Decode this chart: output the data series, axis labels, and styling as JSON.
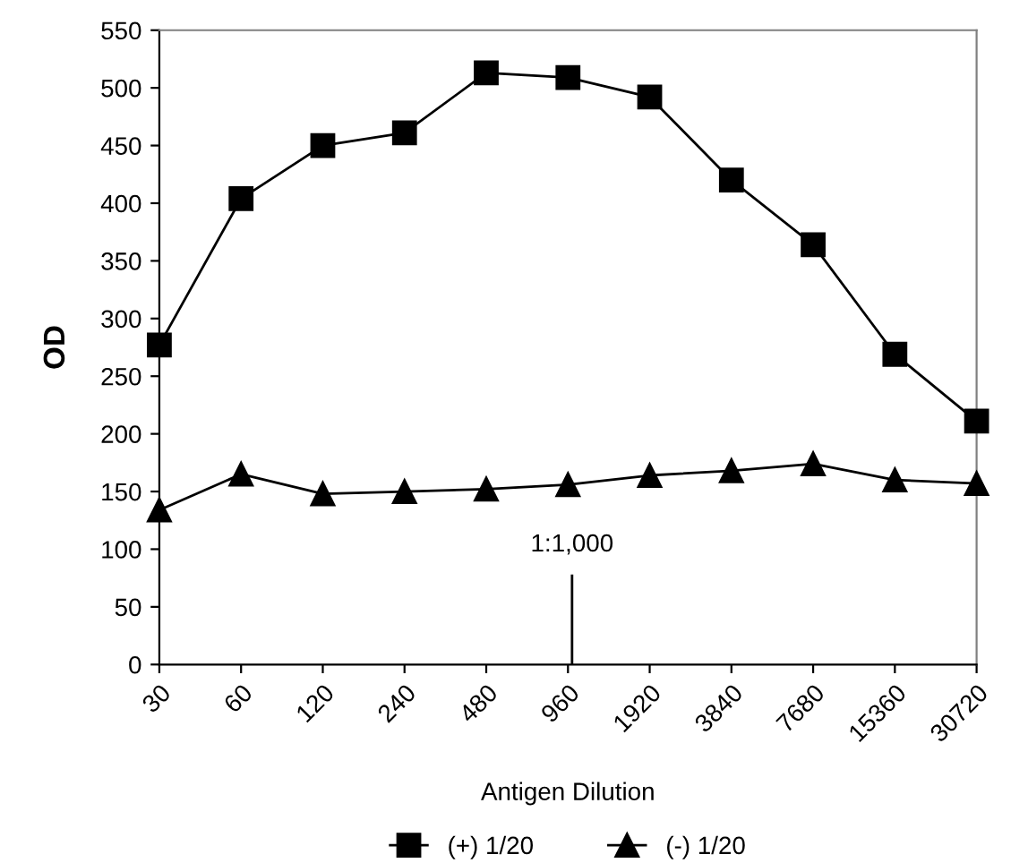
{
  "chart_data": {
    "type": "line",
    "xlabel": "Antigen Dilution",
    "ylabel": "OD",
    "categories": [
      "30",
      "60",
      "120",
      "240",
      "480",
      "960",
      "1920",
      "3840",
      "7680",
      "15360",
      "30720"
    ],
    "series": [
      {
        "name": "(+) 1/20",
        "color": "#000000",
        "marker": "square",
        "values": [
          277,
          404,
          450,
          461,
          513,
          509,
          492,
          420,
          364,
          269,
          211
        ]
      },
      {
        "name": "(-) 1/20",
        "color": "#000000",
        "marker": "triangle",
        "values": [
          134,
          165,
          148,
          150,
          152,
          156,
          164,
          168,
          174,
          160,
          157
        ]
      }
    ],
    "ylim": [
      0,
      550
    ],
    "yticks": [
      0,
      50,
      100,
      150,
      200,
      250,
      300,
      350,
      400,
      450,
      500,
      550
    ],
    "grid": false,
    "legend": "bottom",
    "line_style": "solid",
    "annotations": [
      "1:1,000"
    ]
  }
}
